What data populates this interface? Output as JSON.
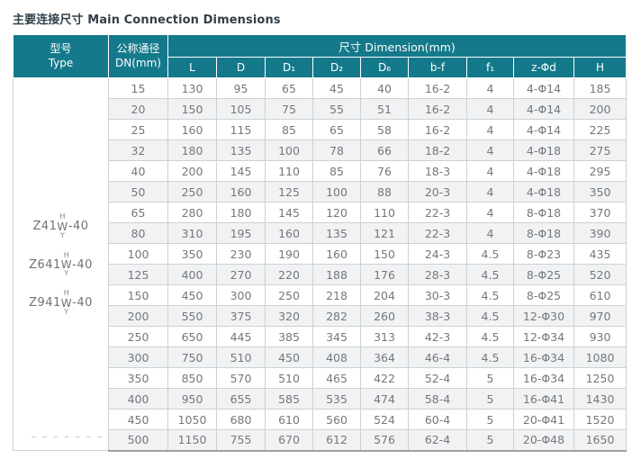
{
  "title": "主要连接尺寸 Main Connection Dimensions",
  "colors": {
    "header_teal": "#14798b",
    "title_text": "#333f48",
    "cell_text": "#74787c",
    "stripe": "#f1f2f3",
    "border": "#ccd1d4"
  },
  "table": {
    "type_header": {
      "zh": "型号",
      "en": "Type"
    },
    "dn_header": {
      "zh": "公称通径",
      "en": "DN(mm)"
    },
    "dimension_header": "尺寸 Dimension(mm)",
    "columns": [
      "L",
      "D",
      "D₁",
      "D₂",
      "D₆",
      "b-f",
      "f₁",
      "z-Φd",
      "H"
    ],
    "types": [
      {
        "prefix": "Z41",
        "top": "H",
        "mid": "W",
        "bottom": "Y",
        "suffix": "-40"
      },
      {
        "prefix": "Z641",
        "top": "H",
        "mid": "W",
        "bottom": "Y",
        "suffix": "-40"
      },
      {
        "prefix": "Z941",
        "top": "H",
        "mid": "W",
        "bottom": "Y",
        "suffix": "-40"
      }
    ],
    "dash_line": "– – – – – – –",
    "rows": [
      {
        "dn": "15",
        "values": [
          "130",
          "95",
          "65",
          "45",
          "40",
          "16-2",
          "4",
          "4-Φ14",
          "185"
        ]
      },
      {
        "dn": "20",
        "values": [
          "150",
          "105",
          "75",
          "55",
          "51",
          "16-2",
          "4",
          "4-Φ14",
          "200"
        ]
      },
      {
        "dn": "25",
        "values": [
          "160",
          "115",
          "85",
          "65",
          "58",
          "16-2",
          "4",
          "4-Φ14",
          "225"
        ]
      },
      {
        "dn": "32",
        "values": [
          "180",
          "135",
          "100",
          "78",
          "66",
          "18-2",
          "4",
          "4-Φ18",
          "275"
        ]
      },
      {
        "dn": "40",
        "values": [
          "200",
          "145",
          "110",
          "85",
          "76",
          "18-3",
          "4",
          "4-Φ18",
          "295"
        ]
      },
      {
        "dn": "50",
        "values": [
          "250",
          "160",
          "125",
          "100",
          "88",
          "20-3",
          "4",
          "4-Φ18",
          "350"
        ]
      },
      {
        "dn": "65",
        "values": [
          "280",
          "180",
          "145",
          "120",
          "110",
          "22-3",
          "4",
          "8-Φ18",
          "370"
        ]
      },
      {
        "dn": "80",
        "values": [
          "310",
          "195",
          "160",
          "135",
          "121",
          "22-3",
          "4",
          "8-Φ18",
          "390"
        ]
      },
      {
        "dn": "100",
        "values": [
          "350",
          "230",
          "190",
          "160",
          "150",
          "24-3",
          "4.5",
          "8-Φ23",
          "435"
        ]
      },
      {
        "dn": "125",
        "values": [
          "400",
          "270",
          "220",
          "188",
          "176",
          "28-3",
          "4.5",
          "8-Φ25",
          "520"
        ]
      },
      {
        "dn": "150",
        "values": [
          "450",
          "300",
          "250",
          "218",
          "204",
          "30-3",
          "4.5",
          "8-Φ25",
          "610"
        ]
      },
      {
        "dn": "200",
        "values": [
          "550",
          "375",
          "320",
          "282",
          "260",
          "38-3",
          "4.5",
          "12-Φ30",
          "970"
        ]
      },
      {
        "dn": "250",
        "values": [
          "650",
          "445",
          "385",
          "345",
          "313",
          "42-3",
          "4.5",
          "12-Φ34",
          "930"
        ]
      },
      {
        "dn": "300",
        "values": [
          "750",
          "510",
          "450",
          "408",
          "364",
          "46-4",
          "4.5",
          "16-Φ34",
          "1080"
        ]
      },
      {
        "dn": "350",
        "values": [
          "850",
          "570",
          "510",
          "465",
          "422",
          "52-4",
          "5",
          "16-Φ34",
          "1250"
        ]
      },
      {
        "dn": "400",
        "values": [
          "950",
          "655",
          "585",
          "535",
          "474",
          "58-4",
          "5",
          "16-Φ41",
          "1430"
        ]
      },
      {
        "dn": "450",
        "values": [
          "1050",
          "680",
          "610",
          "560",
          "524",
          "60-4",
          "5",
          "20-Φ41",
          "1520"
        ]
      },
      {
        "dn": "500",
        "values": [
          "1150",
          "755",
          "670",
          "612",
          "576",
          "62-4",
          "5",
          "20-Φ48",
          "1650"
        ]
      }
    ]
  }
}
